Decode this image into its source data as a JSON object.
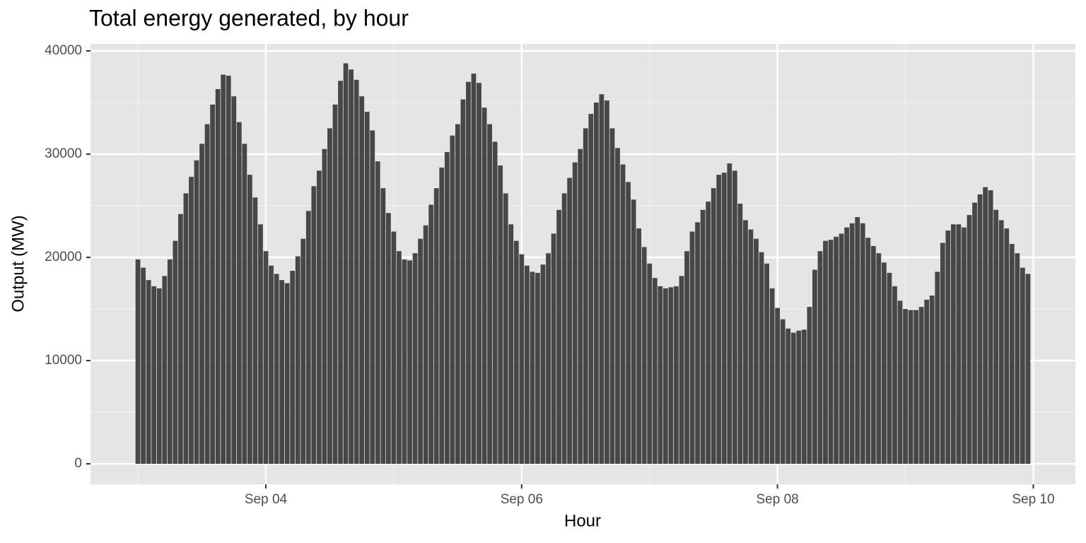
{
  "chart_data": {
    "type": "bar",
    "title": "Total energy generated, by hour",
    "x_label": "Hour",
    "y_label": "Output (MW)",
    "x": [
      0,
      1,
      2,
      3,
      4,
      5,
      6,
      7,
      8,
      9,
      10,
      11,
      12,
      13,
      14,
      15,
      16,
      17,
      18,
      19,
      20,
      21,
      22,
      23,
      24,
      25,
      26,
      27,
      28,
      29,
      30,
      31,
      32,
      33,
      34,
      35,
      36,
      37,
      38,
      39,
      40,
      41,
      42,
      43,
      44,
      45,
      46,
      47,
      48,
      49,
      50,
      51,
      52,
      53,
      54,
      55,
      56,
      57,
      58,
      59,
      60,
      61,
      62,
      63,
      64,
      65,
      66,
      67,
      68,
      69,
      70,
      71,
      72,
      73,
      74,
      75,
      76,
      77,
      78,
      79,
      80,
      81,
      82,
      83,
      84,
      85,
      86,
      87,
      88,
      89,
      90,
      91,
      92,
      93,
      94,
      95,
      96,
      97,
      98,
      99,
      100,
      101,
      102,
      103,
      104,
      105,
      106,
      107,
      108,
      109,
      110,
      111,
      112,
      113,
      114,
      115,
      116,
      117,
      118,
      119,
      120,
      121,
      122,
      123,
      124,
      125,
      126,
      127,
      128,
      129,
      130,
      131,
      132,
      133,
      134,
      135,
      136,
      137,
      138,
      139,
      140,
      141,
      142,
      143,
      144,
      145,
      146,
      147,
      148,
      149,
      150,
      151,
      152,
      153,
      154,
      155,
      156,
      157,
      158,
      159,
      160,
      161,
      162,
      163,
      164,
      165,
      166,
      167
    ],
    "values": [
      19800,
      19000,
      17800,
      17200,
      17000,
      18200,
      19800,
      21600,
      24200,
      26200,
      27800,
      29400,
      31000,
      32900,
      34800,
      36300,
      37700,
      37600,
      35600,
      33100,
      31000,
      28000,
      25800,
      23200,
      20600,
      19200,
      18400,
      17800,
      17500,
      18700,
      20100,
      21800,
      24500,
      26900,
      28400,
      30500,
      32500,
      34800,
      37100,
      38800,
      38200,
      37200,
      35600,
      34100,
      32300,
      29300,
      26700,
      24300,
      22500,
      20600,
      19800,
      19700,
      20400,
      21800,
      23100,
      25100,
      26700,
      28700,
      30200,
      31800,
      32900,
      35300,
      37000,
      37800,
      36900,
      34500,
      32900,
      31200,
      28900,
      26200,
      23200,
      21600,
      20300,
      19200,
      18600,
      18500,
      19300,
      20400,
      22300,
      24600,
      26200,
      27700,
      29200,
      30500,
      32500,
      33900,
      35000,
      35800,
      35200,
      32500,
      30600,
      29000,
      27300,
      25600,
      22800,
      21000,
      19400,
      18000,
      17200,
      17000,
      17100,
      17200,
      18200,
      20600,
      22500,
      23400,
      24600,
      25400,
      26700,
      28000,
      28200,
      29100,
      28400,
      25200,
      23600,
      22700,
      21800,
      20500,
      19400,
      17000,
      15100,
      14000,
      13100,
      12700,
      12900,
      13000,
      15200,
      18800,
      20600,
      21600,
      21700,
      22000,
      22300,
      22900,
      23300,
      23900,
      23300,
      21900,
      21100,
      20400,
      19500,
      18500,
      17200,
      15800,
      15000,
      14900,
      14900,
      15200,
      15900,
      16300,
      18600,
      21400,
      22600,
      23200,
      23200,
      22900,
      24100,
      25300,
      26100,
      26800,
      26500,
      24600,
      23600,
      22800,
      21300,
      20400,
      19000,
      18400
    ],
    "color": "#474747",
    "xlim": [
      -8.9,
      175.9
    ],
    "xticks": [
      {
        "value": 24,
        "label": "Sep 04"
      },
      {
        "value": 72,
        "label": "Sep 06"
      },
      {
        "value": 120,
        "label": "Sep 08"
      },
      {
        "value": 168,
        "label": "Sep 10"
      }
    ],
    "ylim": [
      -1986,
      40685
    ],
    "yticks": [
      0,
      10000,
      20000,
      30000,
      40000
    ],
    "grid": true
  }
}
